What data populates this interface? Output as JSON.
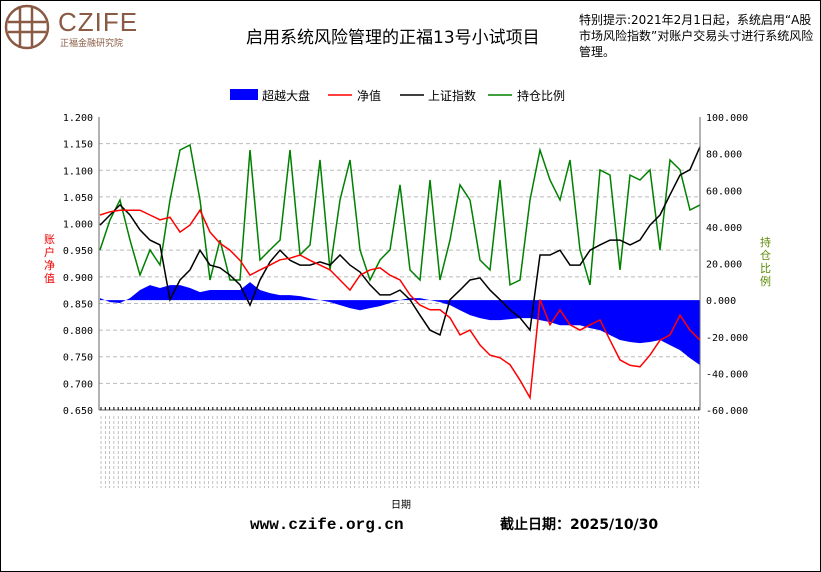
{
  "logo": {
    "brand": "CZIFE",
    "subtitle": "正福金融研究院",
    "color": "#8a5a44"
  },
  "header": {
    "title": "启用系统风险管理的正福13号小试项目",
    "notice": "特别提示:2021年2月1日起，系统启用“A股市场风险指数”对账户交易头寸进行系统风险管理。"
  },
  "footer": {
    "website": "www.czife.org.cn",
    "cutoff": "截止日期：2025/10/30"
  },
  "chart_data": {
    "type": "line",
    "title": "启用系统风险管理的正福13号小试项目",
    "xlabel": "日期",
    "ylabel_left": "账户净值",
    "ylabel_right": "持仓比例",
    "ylim_left": [
      0.65,
      1.2
    ],
    "ylim_right": [
      -60,
      100
    ],
    "yticks_left": [
      "1.200",
      "1.150",
      "1.100",
      "1.050",
      "1.000",
      "0.950",
      "0.900",
      "0.850",
      "0.800",
      "0.750",
      "0.700",
      "0.650"
    ],
    "yticks_right": [
      "100.000",
      "80.000",
      "60.000",
      "40.000",
      "20.000",
      "0.000",
      "-20.000",
      "-40.000",
      "-60.000"
    ],
    "grid": true,
    "legend_position": "top",
    "series": [
      {
        "name": "超越大盘",
        "type": "area",
        "axis": "right",
        "color": "#0000ff",
        "values": [
          1.1,
          -1.1,
          -1.6,
          1.1,
          5.5,
          8.2,
          6.6,
          8.2,
          8.2,
          6.6,
          4.4,
          5.5,
          5.5,
          5.5,
          5.5,
          9.8,
          5.5,
          3.8,
          2.7,
          2.7,
          2.2,
          1.1,
          0,
          -1.1,
          -2.7,
          -4.4,
          -5.5,
          -4.4,
          -3.3,
          -1.6,
          0,
          1.1,
          1.1,
          0,
          -1.1,
          -2.7,
          -5.5,
          -8.2,
          -9.8,
          -10.9,
          -10.9,
          -10.4,
          -9.8,
          -9.8,
          -10.9,
          -12.0,
          -13.7,
          -13.7,
          -13.7,
          -15.3,
          -16.4,
          -19.1,
          -21.8,
          -22.9,
          -23.5,
          -22.9,
          -21.8,
          -24.6,
          -27.3,
          -31.7,
          -35.5
        ]
      },
      {
        "name": "净值",
        "type": "line",
        "axis": "left",
        "color": "#ff0000",
        "values": [
          1.016,
          1.022,
          1.025,
          1.025,
          1.025,
          1.016,
          1.007,
          1.012,
          0.984,
          0.997,
          1.025,
          0.984,
          0.963,
          0.95,
          0.931,
          0.903,
          0.913,
          0.922,
          0.932,
          0.935,
          0.941,
          0.931,
          0.922,
          0.913,
          0.894,
          0.875,
          0.903,
          0.913,
          0.917,
          0.903,
          0.894,
          0.866,
          0.847,
          0.838,
          0.838,
          0.823,
          0.791,
          0.8,
          0.772,
          0.753,
          0.748,
          0.735,
          0.706,
          0.673,
          0.857,
          0.81,
          0.838,
          0.81,
          0.8,
          0.81,
          0.819,
          0.781,
          0.744,
          0.734,
          0.731,
          0.753,
          0.781,
          0.791,
          0.828,
          0.8,
          0.781
        ]
      },
      {
        "name": "上证指数",
        "type": "line",
        "axis": "left",
        "color": "#000000",
        "values": [
          0.997,
          1.016,
          1.035,
          1.016,
          0.988,
          0.969,
          0.96,
          0.857,
          0.894,
          0.913,
          0.95,
          0.922,
          0.917,
          0.903,
          0.885,
          0.847,
          0.894,
          0.928,
          0.95,
          0.931,
          0.922,
          0.922,
          0.928,
          0.922,
          0.941,
          0.922,
          0.909,
          0.885,
          0.866,
          0.866,
          0.875,
          0.857,
          0.828,
          0.8,
          0.791,
          0.857,
          0.875,
          0.894,
          0.898,
          0.875,
          0.857,
          0.838,
          0.823,
          0.8,
          0.941,
          0.941,
          0.95,
          0.922,
          0.922,
          0.95,
          0.96,
          0.969,
          0.969,
          0.96,
          0.969,
          0.997,
          1.016,
          1.054,
          1.091,
          1.101,
          1.144
        ]
      },
      {
        "name": "持仓比例",
        "type": "line",
        "axis": "right",
        "color": "#008000",
        "values": [
          27.4,
          43.8,
          54.7,
          32.8,
          13.7,
          27.4,
          19.2,
          54.7,
          82.0,
          84.7,
          54.7,
          11.0,
          32.8,
          11.0,
          11.0,
          82.0,
          21.9,
          27.4,
          32.8,
          82.0,
          24.7,
          30.1,
          76.5,
          16.5,
          54.7,
          76.5,
          27.4,
          11.0,
          21.9,
          27.4,
          62.9,
          16.5,
          11.0,
          65.6,
          11.0,
          32.8,
          62.9,
          54.7,
          21.9,
          16.5,
          65.6,
          8.3,
          11.0,
          54.7,
          82.0,
          65.6,
          54.7,
          76.5,
          27.4,
          8.3,
          71.1,
          68.3,
          16.5,
          68.3,
          65.6,
          71.1,
          27.4,
          76.5,
          71.1,
          49.2,
          52.0
        ]
      }
    ]
  }
}
